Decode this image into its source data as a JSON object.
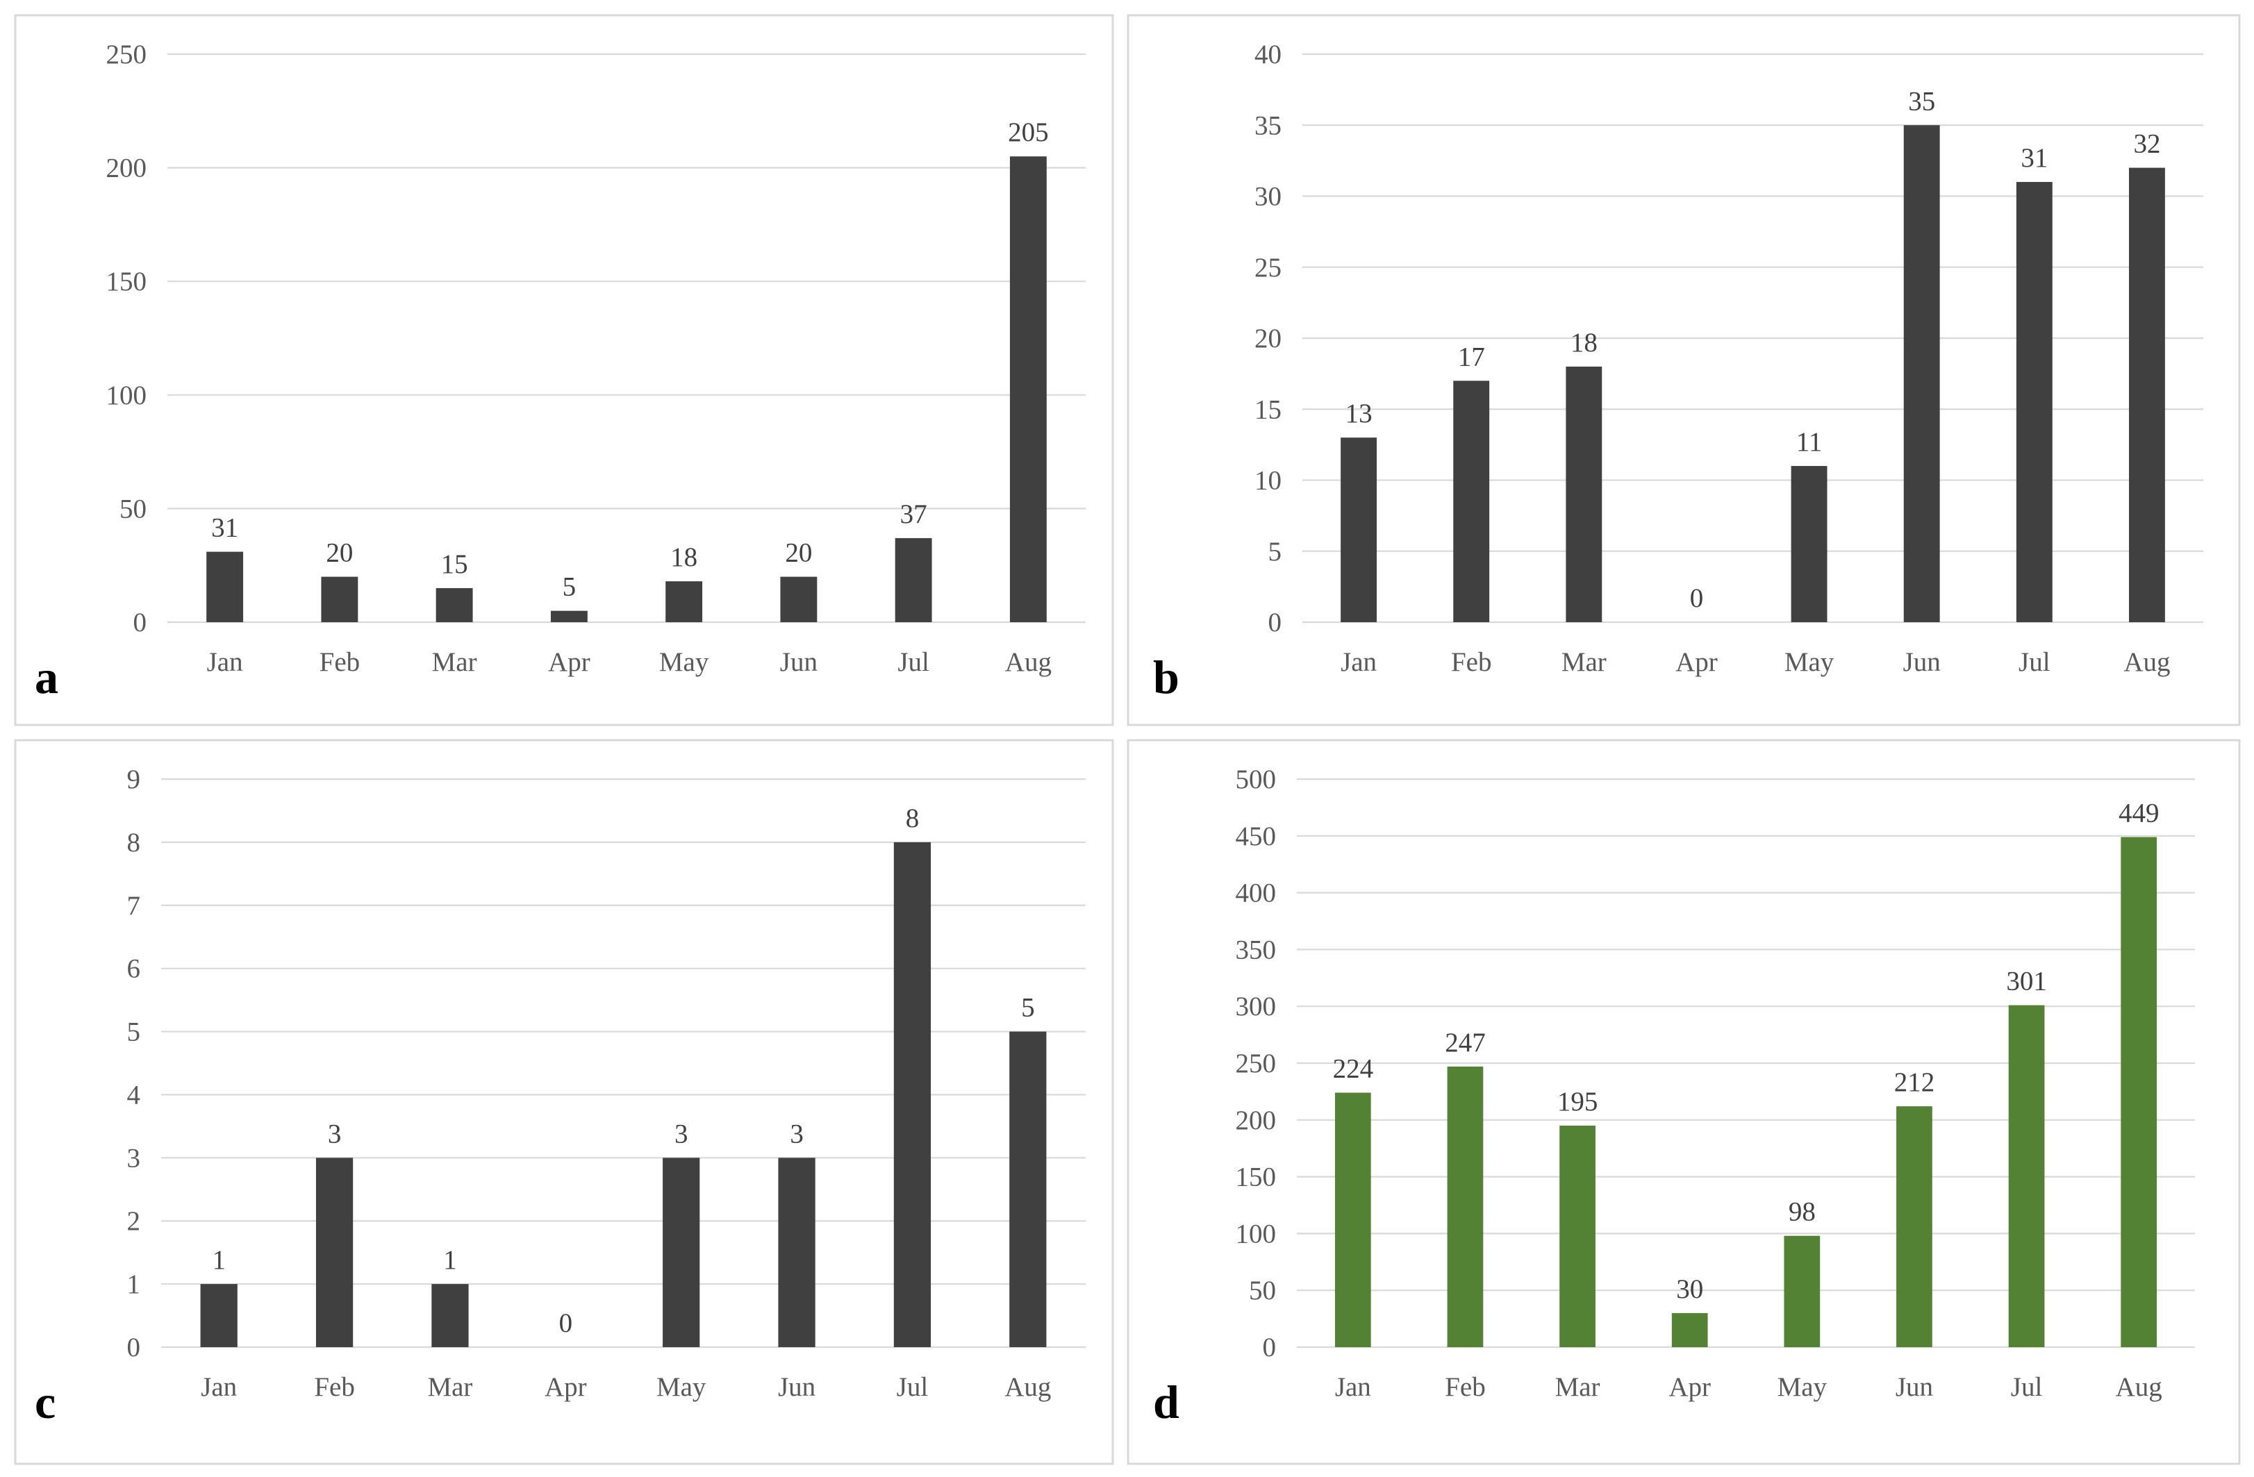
{
  "figure": {
    "layout": "2x2 grid of bar charts"
  },
  "chart_data": [
    {
      "type": "bar",
      "panel_label": "a",
      "categories": [
        "Jan",
        "Feb",
        "Mar",
        "Apr",
        "May",
        "Jun",
        "Jul",
        "Aug"
      ],
      "values": [
        31,
        20,
        15,
        5,
        18,
        20,
        37,
        205
      ],
      "ylim": [
        0,
        250
      ],
      "yticks": [
        0,
        50,
        100,
        150,
        200,
        250
      ],
      "bar_color": "#404040",
      "grid": true,
      "title": "",
      "xlabel": "",
      "ylabel": ""
    },
    {
      "type": "bar",
      "panel_label": "b",
      "categories": [
        "Jan",
        "Feb",
        "Mar",
        "Apr",
        "May",
        "Jun",
        "Jul",
        "Aug"
      ],
      "values": [
        13,
        17,
        18,
        0,
        11,
        35,
        31,
        32
      ],
      "ylim": [
        0,
        40
      ],
      "yticks": [
        0,
        5,
        10,
        15,
        20,
        25,
        30,
        35,
        40
      ],
      "bar_color": "#404040",
      "grid": true,
      "title": "",
      "xlabel": "",
      "ylabel": ""
    },
    {
      "type": "bar",
      "panel_label": "c",
      "categories": [
        "Jan",
        "Feb",
        "Mar",
        "Apr",
        "May",
        "Jun",
        "Jul",
        "Aug"
      ],
      "values": [
        1,
        3,
        1,
        0,
        3,
        3,
        8,
        5
      ],
      "ylim": [
        0,
        9
      ],
      "yticks": [
        0,
        1,
        2,
        3,
        4,
        5,
        6,
        7,
        8,
        9
      ],
      "bar_color": "#404040",
      "grid": true,
      "title": "",
      "xlabel": "",
      "ylabel": ""
    },
    {
      "type": "bar",
      "panel_label": "d",
      "categories": [
        "Jan",
        "Feb",
        "Mar",
        "Apr",
        "May",
        "Jun",
        "Jul",
        "Aug"
      ],
      "values": [
        224,
        247,
        195,
        30,
        98,
        212,
        301,
        449
      ],
      "ylim": [
        0,
        500
      ],
      "yticks": [
        0,
        50,
        100,
        150,
        200,
        250,
        300,
        350,
        400,
        450,
        500
      ],
      "bar_color": "#548235",
      "grid": true,
      "title": "",
      "xlabel": "",
      "ylabel": ""
    }
  ]
}
